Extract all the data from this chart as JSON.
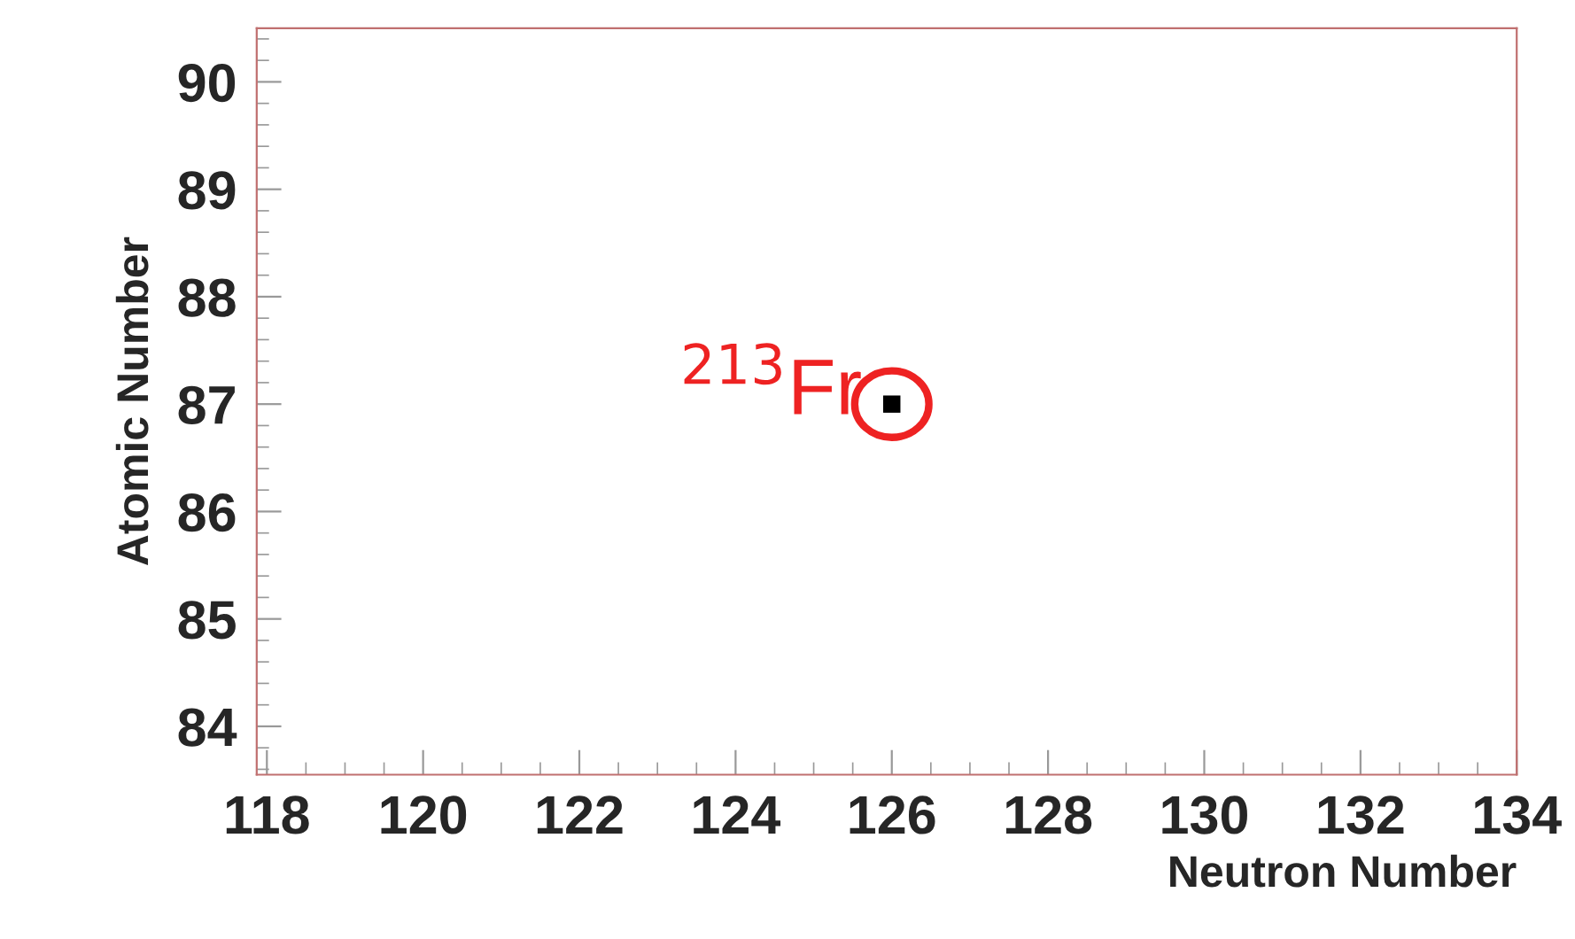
{
  "chart_data": {
    "type": "scatter",
    "xlabel": "Neutron Number",
    "ylabel": "Atomic Number",
    "x": [
      126
    ],
    "values": [
      87
    ],
    "color": "#000000",
    "marker": "square",
    "annotations": [
      {
        "text": "$^{213}$Fr",
        "x": 126,
        "y": 87
      }
    ],
    "xlim": [
      117.87,
      134
    ],
    "xticks": [
      118,
      120,
      122,
      124,
      126,
      128,
      130,
      132,
      134
    ],
    "ylim": [
      83.55,
      90.5
    ],
    "yticks": [
      84,
      85,
      86,
      87,
      88,
      89,
      90
    ],
    "grid": false
  }
}
